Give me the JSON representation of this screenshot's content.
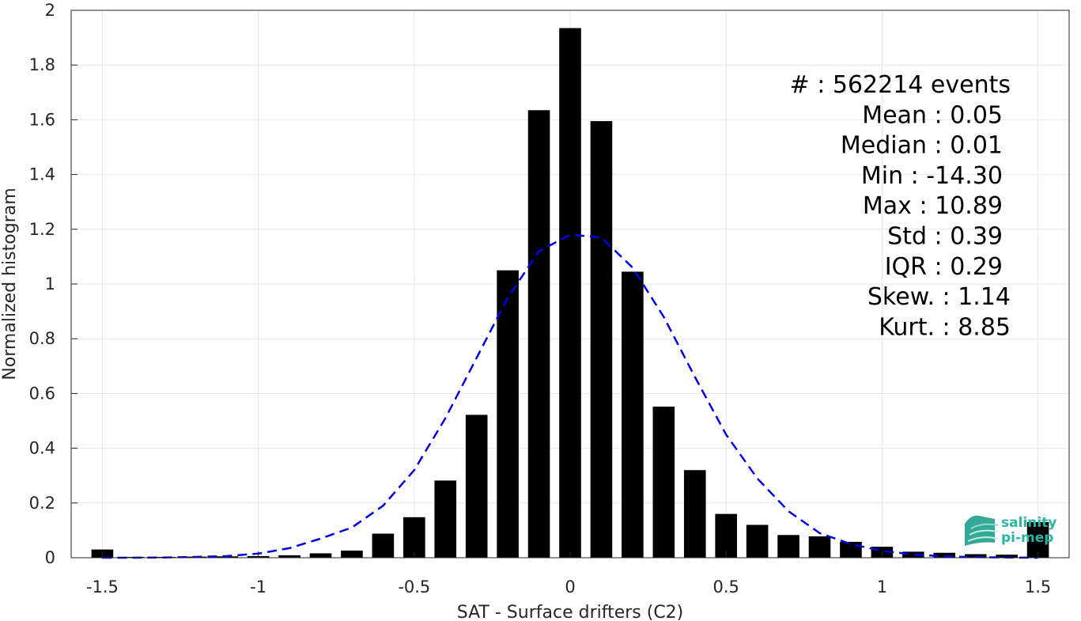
{
  "chart_data": {
    "type": "bar",
    "xlabel": "SAT - Surface drifters (C2)",
    "ylabel": "Normalized histogram",
    "xlim": [
      -1.6,
      1.6
    ],
    "ylim": [
      0,
      2
    ],
    "grid": true,
    "xticks": [
      -1.5,
      -1,
      -0.5,
      0,
      0.5,
      1,
      1.5
    ],
    "xtick_labels": [
      "-1.5",
      "-1",
      "-0.5",
      "0",
      "0.5",
      "1",
      "1.5"
    ],
    "yticks": [
      0,
      0.2,
      0.4,
      0.6,
      0.8,
      1,
      1.2,
      1.4,
      1.6,
      1.8,
      2
    ],
    "ytick_labels": [
      "0",
      "0.2",
      "0.4",
      "0.6",
      "0.8",
      "1",
      "1.2",
      "1.4",
      "1.6",
      "1.8",
      "2"
    ],
    "bar_width": 0.07,
    "bar_color": "#000000",
    "x": [
      -1.5,
      -1.4,
      -1.3,
      -1.2,
      -1.1,
      -1.0,
      -0.9,
      -0.8,
      -0.7,
      -0.6,
      -0.5,
      -0.4,
      -0.3,
      -0.2,
      -0.1,
      0.0,
      0.1,
      0.2,
      0.3,
      0.4,
      0.5,
      0.6,
      0.7,
      0.8,
      0.9,
      1.0,
      1.1,
      1.2,
      1.3,
      1.4,
      1.5
    ],
    "values": [
      0.03,
      0.003,
      0.003,
      0.004,
      0.005,
      0.006,
      0.009,
      0.016,
      0.026,
      0.088,
      0.148,
      0.282,
      0.522,
      1.05,
      1.635,
      1.935,
      1.595,
      1.045,
      0.552,
      0.32,
      0.16,
      0.12,
      0.083,
      0.078,
      0.058,
      0.04,
      0.022,
      0.018,
      0.013,
      0.011,
      0.13
    ],
    "fit_curve": {
      "style": "dashed",
      "color": "#0000e6",
      "x": [
        -1.5,
        -1.4,
        -1.3,
        -1.2,
        -1.1,
        -1.0,
        -0.9,
        -0.8,
        -0.7,
        -0.6,
        -0.5,
        -0.4,
        -0.3,
        -0.2,
        -0.1,
        0.0,
        0.1,
        0.2,
        0.3,
        0.4,
        0.5,
        0.6,
        0.7,
        0.8,
        0.9,
        1.0,
        1.1,
        1.2,
        1.3,
        1.4,
        1.5
      ],
      "y": [
        0.0,
        0.0,
        0.001,
        0.003,
        0.006,
        0.015,
        0.035,
        0.07,
        0.11,
        0.19,
        0.32,
        0.51,
        0.73,
        0.95,
        1.12,
        1.18,
        1.17,
        1.06,
        0.88,
        0.66,
        0.45,
        0.29,
        0.17,
        0.09,
        0.05,
        0.025,
        0.012,
        0.005,
        0.002,
        0.001,
        0.0
      ]
    },
    "annotations": [
      {
        "label": "#  :",
        "value": "562214 events"
      },
      {
        "label": "Mean :",
        "value": "0.05"
      },
      {
        "label": "Median :",
        "value": "0.01"
      },
      {
        "label": "Min :",
        "value": "-14.30"
      },
      {
        "label": "Max :",
        "value": "10.89"
      },
      {
        "label": "Std :",
        "value": "0.39"
      },
      {
        "label": "IQR :",
        "value": "0.29"
      },
      {
        "label": "Skew. :",
        "value": "1.14"
      },
      {
        "label": "Kurt. :",
        "value": "8.85"
      }
    ]
  },
  "logo": {
    "line1": "salinity",
    "line2": "pi-mep",
    "color": "#2ab5a0"
  }
}
